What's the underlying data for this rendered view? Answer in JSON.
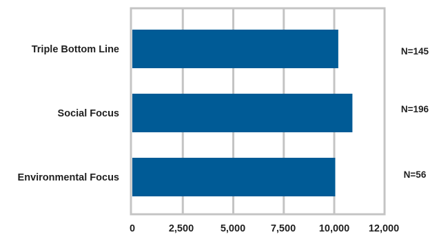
{
  "chart_data": {
    "type": "bar",
    "orientation": "horizontal",
    "title": "",
    "xlabel": "",
    "ylabel": "",
    "categories": [
      "Triple Bottom Line",
      "Social Focus",
      "Environmental Focus"
    ],
    "values": [
      10200,
      10900,
      10050
    ],
    "annotations": [
      "N=145",
      "N=196",
      "N=56"
    ],
    "xlim": [
      0,
      12500
    ],
    "ticks": [
      0,
      2500,
      5000,
      7500,
      10000,
      12000
    ],
    "tick_labels": [
      "0",
      "2,500",
      "5,000",
      "7,500",
      "10,000",
      "12,000"
    ],
    "grid": true,
    "legend": "none",
    "colors": {
      "bar": "#005b96",
      "grid": "#c4c4c4",
      "frame": "#c4c4c4",
      "text": "#1f1f1f"
    }
  }
}
